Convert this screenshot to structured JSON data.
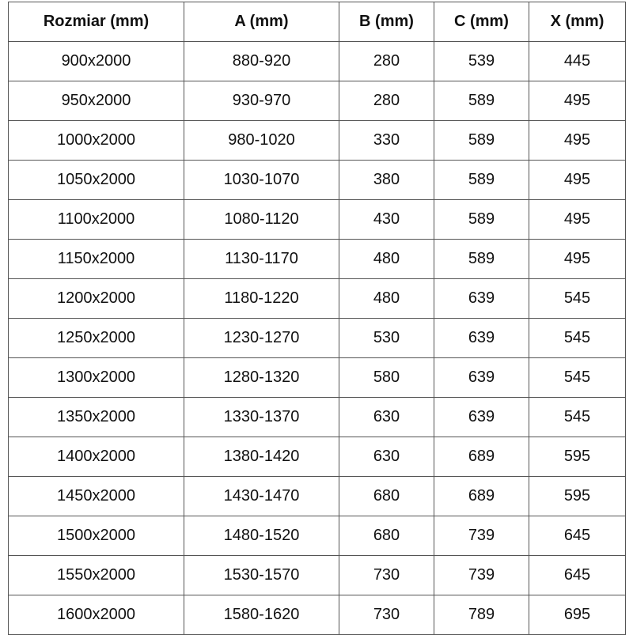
{
  "table": {
    "header": [
      "Rozmiar (mm)",
      "A (mm)",
      "B (mm)",
      "C (mm)",
      "X (mm)"
    ],
    "rows": [
      [
        "900x2000",
        "880-920",
        280,
        539,
        445
      ],
      [
        "950x2000",
        "930-970",
        280,
        589,
        495
      ],
      [
        "1000x2000",
        "980-1020",
        330,
        589,
        495
      ],
      [
        "1050x2000",
        "1030-1070",
        380,
        589,
        495
      ],
      [
        "1100x2000",
        "1080-1120",
        430,
        589,
        495
      ],
      [
        "1150x2000",
        "1130-1170",
        480,
        589,
        495
      ],
      [
        "1200x2000",
        "1180-1220",
        480,
        639,
        545
      ],
      [
        "1250x2000",
        "1230-1270",
        530,
        639,
        545
      ],
      [
        "1300x2000",
        "1280-1320",
        580,
        639,
        545
      ],
      [
        "1350x2000",
        "1330-1370",
        630,
        639,
        545
      ],
      [
        "1400x2000",
        "1380-1420",
        630,
        689,
        595
      ],
      [
        "1450x2000",
        "1430-1470",
        680,
        689,
        595
      ],
      [
        "1500x2000",
        "1480-1520",
        680,
        739,
        645
      ],
      [
        "1550x2000",
        "1530-1570",
        730,
        739,
        645
      ],
      [
        "1600x2000",
        "1580-1620",
        730,
        789,
        695
      ]
    ]
  }
}
